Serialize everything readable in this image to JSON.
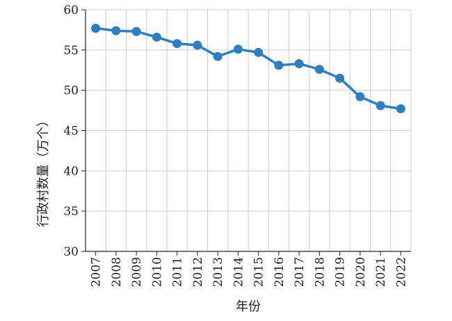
{
  "chart_data": {
    "type": "line",
    "title": "",
    "xlabel": "年份",
    "ylabel": "行政村数量（万个）",
    "x": [
      "2007",
      "2008",
      "2009",
      "2010",
      "2011",
      "2012",
      "2013",
      "2014",
      "2015",
      "2016",
      "2017",
      "2018",
      "2019",
      "2020",
      "2021",
      "2022"
    ],
    "series": [
      {
        "values": [
          57.7,
          57.4,
          57.3,
          56.6,
          55.8,
          55.6,
          54.2,
          55.1,
          54.7,
          53.1,
          53.3,
          52.6,
          51.5,
          49.2,
          48.1,
          47.7
        ]
      }
    ],
    "ylim": [
      30,
      60
    ],
    "yticks": [
      30,
      35,
      40,
      45,
      50,
      55,
      60
    ],
    "grid": true,
    "line_color": "#2e7fc1",
    "grid_color": "#cccccc"
  }
}
